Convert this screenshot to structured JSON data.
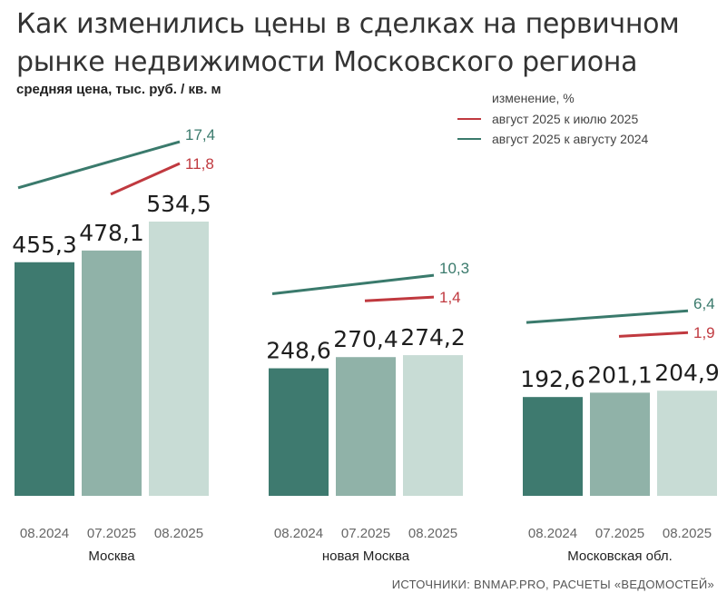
{
  "title": "Как изменились цены в сделках на первичном рынке недвижимости Московского региона",
  "subtitle": "средняя цена, тыс. руб. / кв. м",
  "legend": {
    "header": "изменение, %",
    "items": [
      {
        "label": "август 2025 к июлю 2025",
        "color": "#c0393f"
      },
      {
        "label": "август 2025 к августу 2024",
        "color": "#3a7a6c"
      }
    ]
  },
  "source": "ИСТОЧНИКИ: BNMAP.PRO, РАСЧЕТЫ «ВЕДОМОСТЕЙ»",
  "colors": {
    "bar_0824": "#3e7a6f",
    "bar_0725": "#90b2a8",
    "bar_0825": "#c8dcd5",
    "change_month": "#c0393f",
    "change_year": "#3a7a6c"
  },
  "chart_data": {
    "type": "bar",
    "categories": [
      "08.2024",
      "07.2025",
      "08.2025"
    ],
    "ylabel": "средняя цена, тыс. руб. / кв. м",
    "groups": [
      {
        "name": "Москва",
        "values": [
          455.3,
          478.1,
          534.5
        ],
        "labels": [
          "455,3",
          "478,1",
          "534,5"
        ],
        "change_year": 17.4,
        "change_year_label": "17,4",
        "change_month": 11.8,
        "change_month_label": "11,8"
      },
      {
        "name": "новая Москва",
        "values": [
          248.6,
          270.4,
          274.2
        ],
        "labels": [
          "248,6",
          "270,4",
          "274,2"
        ],
        "change_year": 10.3,
        "change_year_label": "10,3",
        "change_month": 1.4,
        "change_month_label": "1,4"
      },
      {
        "name": "Московская обл.",
        "values": [
          192.6,
          201.1,
          204.9
        ],
        "labels": [
          "192,6",
          "201,1",
          "204,9"
        ],
        "change_year": 6.4,
        "change_year_label": "6,4",
        "change_month": 1.9,
        "change_month_label": "1,9"
      }
    ]
  }
}
